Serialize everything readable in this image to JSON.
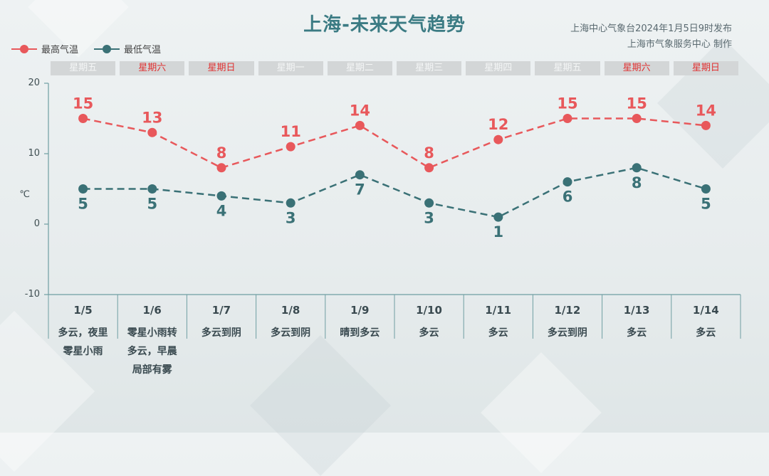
{
  "title": "上海-未来天气趋势",
  "issuer": {
    "line1": "上海中心气象台2024年1月5日9时发布",
    "line2": "上海市气象服务中心 制作"
  },
  "legend": {
    "high": "最高气温",
    "low": "最低气温"
  },
  "unit": "℃",
  "colors": {
    "high": "#e8585b",
    "low": "#3a7176",
    "weekend": "#e03131"
  },
  "chart_data": {
    "type": "line",
    "title": "上海-未来天气趋势",
    "ylabel": "℃",
    "ylim": [
      -10,
      20
    ],
    "yticks": [
      20,
      10,
      0,
      -10
    ],
    "grid": false,
    "legend_position": "top-left",
    "categories": [
      "1/5",
      "1/6",
      "1/7",
      "1/8",
      "1/9",
      "1/10",
      "1/11",
      "1/12",
      "1/13",
      "1/14"
    ],
    "weekdays": [
      "星期五",
      "星期六",
      "星期日",
      "星期一",
      "星期二",
      "星期三",
      "星期四",
      "星期五",
      "星期六",
      "星期日"
    ],
    "weekend_flags": [
      false,
      true,
      true,
      false,
      false,
      false,
      false,
      false,
      true,
      true
    ],
    "weather": [
      "多云，夜里\n零星小雨",
      "零星小雨转\n多云，早晨\n局部有雾",
      "多云到阴",
      "多云到阴",
      "晴到多云",
      "多云",
      "多云",
      "多云到阴",
      "多云",
      "多云"
    ],
    "series": [
      {
        "name": "最高气温",
        "values": [
          15,
          13,
          8,
          11,
          14,
          8,
          12,
          15,
          15,
          14
        ]
      },
      {
        "name": "最低气温",
        "values": [
          5,
          5,
          4,
          3,
          7,
          3,
          1,
          6,
          8,
          5
        ]
      }
    ]
  }
}
